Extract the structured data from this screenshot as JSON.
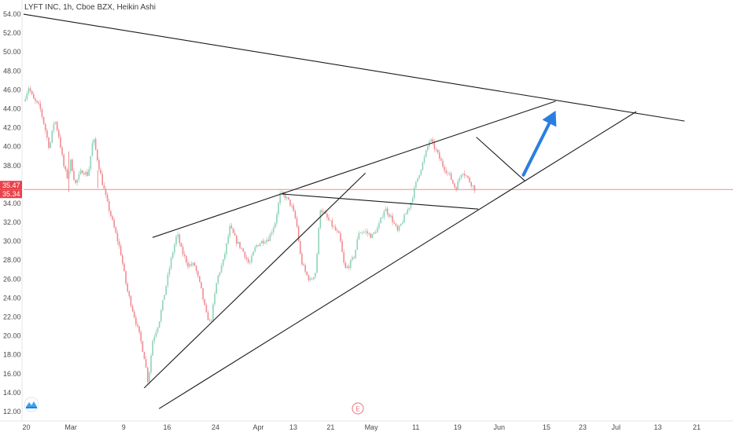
{
  "chart_data": {
    "type": "line",
    "title": "LYFT INC, 1h, Cboe BZX, Heikin Ashi",
    "xlabel": "",
    "ylabel": "",
    "ylim": [
      11.0,
      54.5
    ],
    "grid": false,
    "x_ticks": [
      "20",
      "Mar",
      "9",
      "16",
      "24",
      "Apr",
      "13",
      "21",
      "May",
      "11",
      "19",
      "Jun",
      "15",
      "23",
      "Jul",
      "13",
      "21"
    ],
    "y_ticks": [
      "54.00",
      "52.00",
      "50.00",
      "48.00",
      "46.00",
      "44.00",
      "42.00",
      "40.00",
      "38.00",
      "36.00",
      "34.00",
      "32.00",
      "30.00",
      "28.00",
      "26.00",
      "24.00",
      "22.00",
      "20.00",
      "18.00",
      "16.00",
      "14.00",
      "12.00"
    ],
    "price_labels": [
      {
        "text": "35.47",
        "value": 35.47
      },
      {
        "text": "35.34",
        "value": 35.34
      }
    ],
    "price_series": {
      "name": "",
      "up_color": "#8fd3b6",
      "down_color": "#f08c92",
      "points": [
        [
          0.0,
          44.8
        ],
        [
          0.8,
          46.3
        ],
        [
          1.5,
          45.0
        ],
        [
          2.5,
          44.2
        ],
        [
          3.3,
          42.0
        ],
        [
          4.0,
          39.8
        ],
        [
          4.8,
          43.0
        ],
        [
          5.5,
          41.0
        ],
        [
          6.2,
          38.0
        ],
        [
          6.8,
          36.7
        ],
        [
          7.3,
          38.5
        ],
        [
          8.0,
          36.0
        ],
        [
          9.0,
          37.5
        ],
        [
          10.0,
          37.0
        ],
        [
          10.8,
          41.0
        ],
        [
          11.5,
          38.5
        ],
        [
          12.2,
          36.2
        ],
        [
          13.0,
          34.0
        ],
        [
          14.0,
          31.5
        ],
        [
          15.0,
          29.0
        ],
        [
          16.0,
          25.0
        ],
        [
          17.0,
          22.5
        ],
        [
          18.0,
          20.0
        ],
        [
          18.8,
          17.5
        ],
        [
          19.3,
          15.0
        ],
        [
          20.0,
          19.5
        ],
        [
          21.0,
          21.5
        ],
        [
          22.0,
          25.0
        ],
        [
          23.0,
          28.5
        ],
        [
          23.8,
          30.8
        ],
        [
          24.5,
          29.0
        ],
        [
          25.5,
          27.5
        ],
        [
          26.5,
          27.5
        ],
        [
          27.5,
          25.0
        ],
        [
          28.3,
          22.3
        ],
        [
          29.0,
          21.3
        ],
        [
          30.0,
          26.0
        ],
        [
          31.0,
          28.0
        ],
        [
          32.0,
          31.5
        ],
        [
          33.0,
          30.0
        ],
        [
          34.0,
          29.0
        ],
        [
          35.0,
          27.5
        ],
        [
          36.0,
          29.5
        ],
        [
          37.0,
          30.0
        ],
        [
          38.0,
          30.3
        ],
        [
          39.0,
          32.0
        ],
        [
          39.8,
          35.0
        ],
        [
          40.5,
          34.8
        ],
        [
          41.5,
          33.8
        ],
        [
          42.3,
          32.0
        ],
        [
          43.0,
          28.0
        ],
        [
          43.8,
          26.5
        ],
        [
          44.5,
          25.8
        ],
        [
          45.3,
          26.8
        ],
        [
          46.0,
          33.5
        ],
        [
          47.0,
          32.5
        ],
        [
          48.0,
          31.5
        ],
        [
          49.0,
          30.5
        ],
        [
          49.8,
          27.0
        ],
        [
          50.5,
          27.5
        ],
        [
          51.3,
          28.5
        ],
        [
          52.0,
          31.0
        ],
        [
          53.0,
          31.0
        ],
        [
          54.0,
          30.5
        ],
        [
          55.0,
          31.5
        ],
        [
          56.0,
          33.5
        ],
        [
          57.0,
          32.5
        ],
        [
          58.0,
          31.0
        ],
        [
          59.0,
          32.5
        ],
        [
          60.0,
          34.0
        ],
        [
          61.0,
          36.5
        ],
        [
          62.0,
          38.5
        ],
        [
          63.0,
          40.8
        ],
        [
          64.0,
          39.5
        ],
        [
          65.0,
          38.0
        ],
        [
          66.0,
          37.0
        ],
        [
          67.0,
          35.5
        ],
        [
          68.0,
          37.5
        ],
        [
          69.0,
          36.5
        ],
        [
          70.0,
          35.5
        ]
      ]
    },
    "trendlines": [
      {
        "x1": 0.0,
        "y1": 54.0,
        "x2": 102.5,
        "y2": 42.7
      },
      {
        "x1": 20.0,
        "y1": 30.4,
        "x2": 82.5,
        "y2": 44.8
      },
      {
        "x1": 18.7,
        "y1": 14.5,
        "x2": 53.0,
        "y2": 37.2
      },
      {
        "x1": 21.0,
        "y1": 12.3,
        "x2": 95.0,
        "y2": 43.7
      },
      {
        "x1": 40.0,
        "y1": 35.0,
        "x2": 70.5,
        "y2": 33.4
      },
      {
        "x1": 70.2,
        "y1": 41.0,
        "x2": 77.7,
        "y2": 36.4
      }
    ],
    "projection_arrow": {
      "x1": 77.5,
      "y1": 37.0,
      "x2": 82.5,
      "y2": 43.8,
      "color": "#2a7ee2"
    },
    "current_price_line": 35.47,
    "event_marker": "E"
  }
}
